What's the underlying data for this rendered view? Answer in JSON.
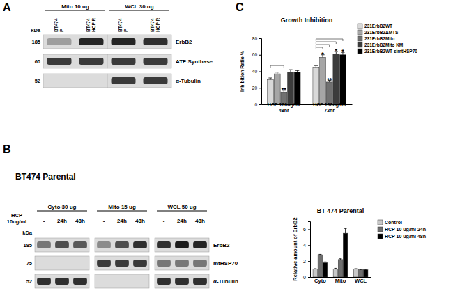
{
  "panel_labels": [
    "A",
    "B",
    "C"
  ],
  "blots": [
    {
      "kda_label": "kDa",
      "groups": [
        {
          "text": "Mito 10 ug",
          "lanes": [
            [
              "BT474",
              "P"
            ],
            [
              "BT474",
              "HCP R"
            ]
          ]
        },
        {
          "text": "WCL 30 ug",
          "lanes": [
            [
              "BT474",
              "P"
            ],
            [
              "BT474",
              "HCP R"
            ]
          ]
        }
      ],
      "rows": [
        {
          "kda": 185,
          "name": "ErbB2",
          "bands": [
            [
              0.3,
              0.9
            ],
            [
              0.9,
              0.85
            ]
          ]
        },
        {
          "kda": 60,
          "name": "ATP Synthase",
          "bands": [
            [
              0.8,
              0.8
            ],
            [
              0.8,
              0.8
            ]
          ]
        },
        {
          "kda": 52,
          "name": "α-Tubulin",
          "bands": [
            [
              0,
              0
            ],
            [
              0.8,
              0.8
            ]
          ]
        }
      ]
    },
    {
      "title": "BT474 Parental",
      "kda_label": "kDa",
      "lane_header": [
        "HCP",
        "10ug/ml"
      ],
      "groups": [
        {
          "text": "Cyto 30 ug",
          "lanes": [
            "-",
            "24h",
            "48h"
          ]
        },
        {
          "text": "Mito 15 ug",
          "lanes": [
            "-",
            "24h",
            "48h"
          ]
        },
        {
          "text": "WCL 50 ug",
          "lanes": [
            "-",
            "24h",
            "48h"
          ]
        }
      ],
      "rows": [
        {
          "kda": 185,
          "name": "ErbB2",
          "bands": [
            [
              0.5,
              0.7,
              0.65
            ],
            [
              0.4,
              0.7,
              0.85
            ],
            [
              0.85,
              0.95,
              0.9
            ]
          ]
        },
        {
          "kda": 75,
          "name": "mtHSP70",
          "bands": [
            [
              0,
              0,
              0
            ],
            [
              0.8,
              0.8,
              0.8
            ],
            [
              0.5,
              0.5,
              0.5
            ]
          ]
        },
        {
          "kda": 52,
          "name": "α-Tubulin",
          "bands": [
            [
              0.85,
              0.85,
              0.85
            ],
            [
              0,
              0,
              0
            ],
            [
              0.85,
              0.85,
              0.85
            ]
          ]
        }
      ]
    }
  ],
  "chart_data": [
    {
      "type": "bar",
      "title": "Growth Inhibition",
      "y_label": "Inhibition Ratio %",
      "categories": [
        "HCP 100ug/ml 48hr",
        "HCP 100ug/ml 72hr"
      ],
      "series": [
        {
          "name": "231ErbB2WT",
          "color": "#d9d9d9",
          "values": [
            30,
            45
          ],
          "errors": [
            2,
            2
          ]
        },
        {
          "name": "231ErbB2ΔMTS",
          "color": "#a6a6a6",
          "values": [
            37,
            57
          ],
          "errors": [
            2,
            3
          ]
        },
        {
          "name": "231ErbB2Mito",
          "color": "#707070",
          "values": [
            15,
            27
          ],
          "errors": [
            2,
            2
          ]
        },
        {
          "name": "231ErbB2Mito KM",
          "color": "#3c3c3c",
          "values": [
            39,
            61
          ],
          "errors": [
            3,
            3
          ]
        },
        {
          "name": "231ErbB2WT simtHSP70",
          "color": "#000000",
          "values": [
            39,
            60
          ],
          "errors": [
            2,
            3
          ]
        }
      ],
      "ylim": [
        0,
        80
      ],
      "yticks": [
        0,
        20,
        40,
        60,
        80
      ],
      "grid": false,
      "legend": "right",
      "annotations": [
        {
          "text": "**",
          "category": 0,
          "series": 2
        },
        {
          "text": "*",
          "category": 1,
          "series": 1
        },
        {
          "text": "**",
          "category": 1,
          "series": 2
        },
        {
          "text": "*",
          "category": 1,
          "series": 3
        },
        {
          "text": "*",
          "category": 1,
          "series": 4
        }
      ]
    },
    {
      "type": "bar",
      "title": "BT 474 Parental",
      "y_label": "Relative amount of ErbB2",
      "categories": [
        "Cyto",
        "Mito",
        "WCL"
      ],
      "series": [
        {
          "name": "Control",
          "color": "#c8c8c8",
          "values": [
            1,
            1,
            1
          ],
          "errors": [
            0.05,
            0.1,
            0.05
          ]
        },
        {
          "name": "HCP 10 ug/ml 24h",
          "color": "#6e6e6e",
          "values": [
            2.8,
            2.2,
            0.9
          ],
          "errors": [
            0.05,
            0.1,
            0.05
          ]
        },
        {
          "name": "HCP 10 ug/ml 48h",
          "color": "#000000",
          "values": [
            1.8,
            5.5,
            0.9
          ],
          "errors": [
            0.1,
            0.6,
            0.05
          ]
        }
      ],
      "ylim": [
        0,
        7
      ],
      "yticks": [
        0,
        2,
        4,
        6
      ],
      "grid": false,
      "legend": "right"
    }
  ]
}
